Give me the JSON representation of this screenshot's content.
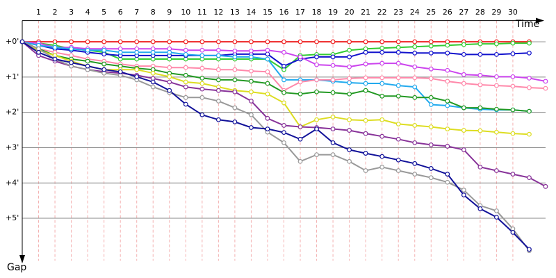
{
  "chart_data": {
    "type": "line",
    "x_label": "Time",
    "y_label": "Gap",
    "x": [
      0,
      1,
      2,
      3,
      4,
      5,
      6,
      7,
      8,
      9,
      10,
      11,
      12,
      13,
      14,
      15,
      16,
      17,
      18,
      19,
      20,
      21,
      22,
      23,
      24,
      25,
      26,
      27,
      28,
      29,
      30,
      31,
      32
    ],
    "xlim": [
      0,
      32
    ],
    "xticks": [
      1,
      2,
      3,
      4,
      5,
      6,
      7,
      8,
      9,
      10,
      11,
      12,
      13,
      14,
      15,
      16,
      17,
      18,
      19,
      20,
      21,
      22,
      23,
      24,
      25,
      26,
      27,
      28,
      29,
      30
    ],
    "ylim": [
      -0.6,
      6.2
    ],
    "yticks": [
      {
        "value": 0,
        "label": "+0'"
      },
      {
        "value": 1,
        "label": "+1'"
      },
      {
        "value": 2,
        "label": "+2'"
      },
      {
        "value": 3,
        "label": "+3'"
      },
      {
        "value": 4,
        "label": "+4'"
      },
      {
        "value": 5,
        "label": "+5'"
      }
    ],
    "grid": true,
    "series": [
      {
        "color": "#ee2222",
        "values": [
          0,
          0,
          0,
          0,
          0,
          0,
          0,
          0,
          0,
          0,
          0,
          0,
          0,
          0,
          0,
          0,
          0,
          0,
          0,
          0,
          0,
          0,
          0,
          0,
          0,
          0,
          0,
          0,
          0,
          0,
          0,
          0,
          null
        ]
      },
      {
        "color": "#33cc33",
        "values": [
          0,
          0.04,
          0.1,
          0.2,
          0.24,
          0.3,
          0.49,
          0.49,
          0.49,
          0.49,
          0.49,
          0.49,
          0.49,
          0.49,
          0.49,
          0.49,
          0.79,
          0.39,
          0.36,
          0.36,
          0.24,
          0.2,
          0.18,
          0.16,
          0.14,
          0.12,
          0.1,
          0.08,
          0.06,
          0.06,
          0.04,
          0.04,
          null
        ]
      },
      {
        "color": "#1111cc",
        "values": [
          0,
          0.1,
          0.2,
          0.24,
          0.3,
          0.35,
          0.39,
          0.39,
          0.39,
          0.39,
          0.39,
          0.39,
          0.39,
          0.35,
          0.35,
          0.35,
          0.69,
          0.49,
          0.43,
          0.43,
          0.43,
          0.3,
          0.3,
          0.3,
          0.32,
          0.32,
          0.32,
          0.36,
          0.36,
          0.36,
          0.34,
          0.32,
          null
        ]
      },
      {
        "color": "#cc44ee",
        "values": [
          0,
          0.04,
          0.16,
          0.16,
          0.2,
          0.2,
          0.2,
          0.2,
          0.2,
          0.2,
          0.24,
          0.24,
          0.24,
          0.26,
          0.26,
          0.24,
          0.3,
          0.43,
          0.65,
          0.67,
          0.71,
          0.63,
          0.61,
          0.61,
          0.71,
          0.77,
          0.81,
          0.93,
          0.95,
          0.99,
          0.99,
          1.03,
          1.12
        ]
      },
      {
        "color": "#22aaee",
        "values": [
          0,
          0.1,
          0.16,
          0.2,
          0.24,
          0.24,
          0.3,
          0.3,
          0.3,
          0.3,
          0.36,
          0.39,
          0.39,
          0.43,
          0.43,
          0.49,
          1.08,
          1.08,
          1.08,
          1.12,
          1.16,
          1.18,
          1.18,
          1.24,
          1.28,
          1.78,
          1.81,
          1.87,
          1.91,
          1.93,
          1.93,
          1.97,
          null
        ]
      },
      {
        "color": "#ff88aa",
        "values": [
          0,
          0.2,
          0.3,
          0.39,
          0.49,
          0.55,
          0.63,
          0.69,
          0.69,
          0.73,
          0.73,
          0.75,
          0.79,
          0.79,
          0.83,
          0.85,
          1.38,
          1.14,
          1.08,
          1.08,
          1.04,
          1.02,
          1.02,
          1.02,
          1.02,
          1.04,
          1.12,
          1.18,
          1.22,
          1.24,
          1.26,
          1.3,
          1.32
        ]
      },
      {
        "color": "#229922",
        "values": [
          0,
          0.2,
          0.39,
          0.49,
          0.55,
          0.63,
          0.69,
          0.75,
          0.79,
          0.89,
          0.95,
          1.03,
          1.08,
          1.08,
          1.12,
          1.18,
          1.44,
          1.48,
          1.42,
          1.44,
          1.48,
          1.38,
          1.54,
          1.54,
          1.58,
          1.58,
          1.68,
          1.87,
          1.87,
          1.91,
          1.93,
          1.97,
          null
        ]
      },
      {
        "color": "#dddd22",
        "values": [
          0,
          0.24,
          0.39,
          0.55,
          0.69,
          0.79,
          0.79,
          0.79,
          0.89,
          0.99,
          1.14,
          1.18,
          1.28,
          1.38,
          1.42,
          1.48,
          1.73,
          2.41,
          2.21,
          2.13,
          2.21,
          2.23,
          2.21,
          2.33,
          2.37,
          2.41,
          2.47,
          2.51,
          2.52,
          2.56,
          2.6,
          2.62,
          null
        ]
      },
      {
        "color": "#883399",
        "values": [
          0,
          0.39,
          0.55,
          0.69,
          0.79,
          0.85,
          0.89,
          0.95,
          1.04,
          1.14,
          1.28,
          1.34,
          1.38,
          1.42,
          1.68,
          2.17,
          2.37,
          2.41,
          2.43,
          2.47,
          2.51,
          2.6,
          2.68,
          2.76,
          2.86,
          2.92,
          2.96,
          3.06,
          3.55,
          3.65,
          3.75,
          3.85,
          4.1
        ]
      },
      {
        "color": "#999999",
        "values": [
          0,
          0.2,
          0.49,
          0.69,
          0.79,
          0.89,
          0.95,
          1.08,
          1.28,
          1.44,
          1.58,
          1.58,
          1.68,
          1.87,
          2.07,
          2.56,
          2.86,
          3.39,
          3.2,
          3.2,
          3.39,
          3.65,
          3.55,
          3.65,
          3.75,
          3.85,
          3.98,
          4.2,
          4.64,
          4.79,
          5.3,
          5.92,
          null
        ]
      },
      {
        "color": "#111199",
        "values": [
          0,
          0.3,
          0.49,
          0.59,
          0.69,
          0.79,
          0.85,
          0.99,
          1.14,
          1.38,
          1.77,
          2.07,
          2.21,
          2.27,
          2.43,
          2.47,
          2.57,
          2.76,
          2.47,
          2.86,
          3.06,
          3.16,
          3.25,
          3.35,
          3.45,
          3.59,
          3.75,
          4.34,
          4.73,
          4.97,
          5.4,
          5.88,
          null
        ]
      }
    ]
  }
}
